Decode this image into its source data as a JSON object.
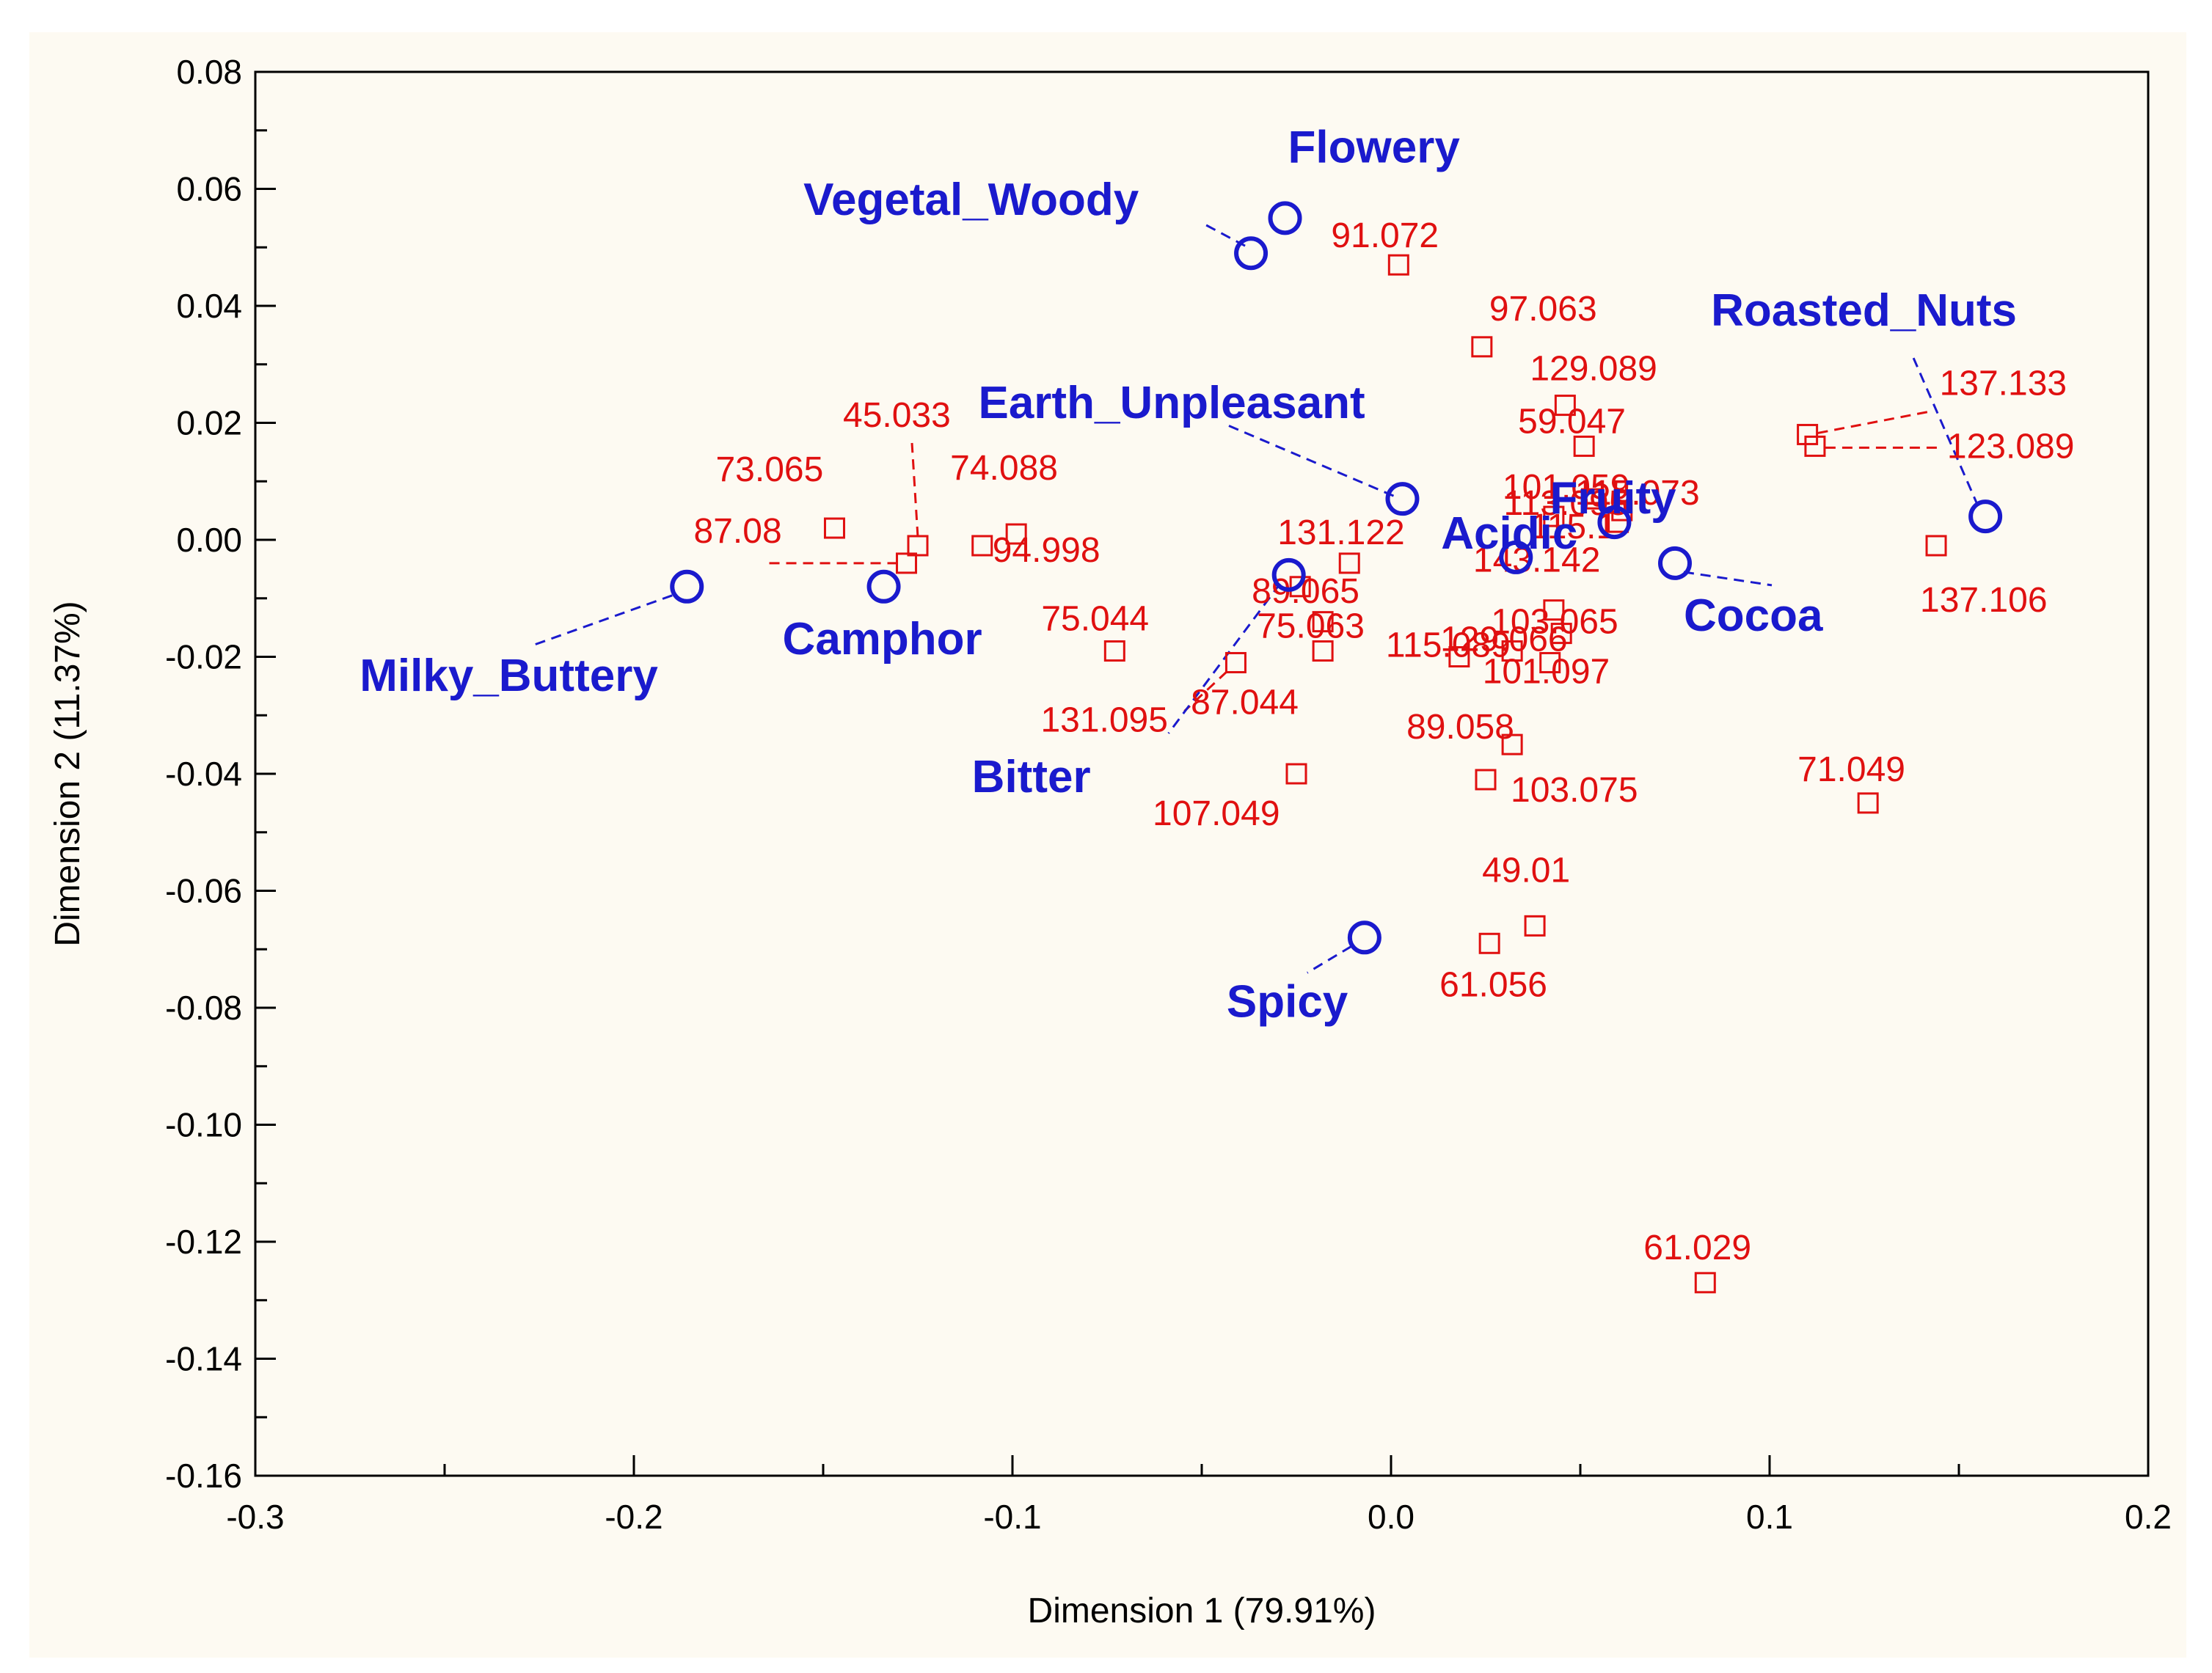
{
  "chart_data": {
    "type": "scatter",
    "xlabel": "Dimension 1 (79.91%)",
    "ylabel": "Dimension 2  (11.37%)",
    "xlim": [
      -0.3,
      0.2
    ],
    "ylim": [
      -0.16,
      0.08
    ],
    "xticks": [
      "-0.3",
      "-0.2",
      "-0.1",
      "0.0",
      "0.1",
      "0.2"
    ],
    "yticks": [
      "0.08",
      "0.06",
      "0.04",
      "0.02",
      "0.00",
      "-0.02",
      "-0.04",
      "-0.06",
      "-0.08",
      "-0.10",
      "-0.12",
      "-0.14",
      "-0.16"
    ],
    "grid": false,
    "colors": {
      "compounds": "#e01010",
      "attributes": "#1a1acd"
    },
    "series": [
      {
        "name": "",
        "marker": "square",
        "points": [
          {
            "label": "91.072",
            "x": 0.002,
            "y": 0.047
          },
          {
            "label": "97.063",
            "x": 0.024,
            "y": 0.033
          },
          {
            "label": "129.089",
            "x": 0.046,
            "y": 0.023
          },
          {
            "label": "59.047",
            "x": 0.051,
            "y": 0.016
          },
          {
            "label": "101.059",
            "x": 0.043,
            "y": 0.004
          },
          {
            "label": "113.095",
            "x": 0.053,
            "y": 0.007
          },
          {
            "label": "115.073",
            "x": 0.061,
            "y": 0.005
          },
          {
            "label": "115.1",
            "x": 0.06,
            "y": 0.003
          },
          {
            "label": "45.033",
            "x": -0.125,
            "y": -0.001
          },
          {
            "label": "73.065",
            "x": -0.147,
            "y": 0.002
          },
          {
            "label": "87.08",
            "x": -0.128,
            "y": -0.004
          },
          {
            "label": "74.088",
            "x": -0.099,
            "y": 0.001
          },
          {
            "label": "94.998",
            "x": -0.108,
            "y": -0.001
          },
          {
            "label": "131.122",
            "x": -0.011,
            "y": -0.004
          },
          {
            "label": "89.065",
            "x": -0.024,
            "y": -0.008
          },
          {
            "label": "75.044",
            "x": -0.073,
            "y": -0.019
          },
          {
            "label": "75.063",
            "x": -0.018,
            "y": -0.014
          },
          {
            "label": "131.095",
            "x": -0.041,
            "y": -0.021
          },
          {
            "label": "87.044",
            "x": -0.018,
            "y": -0.019
          },
          {
            "label": "143.142",
            "x": 0.043,
            "y": -0.012
          },
          {
            "label": "115.089",
            "x": 0.018,
            "y": -0.02
          },
          {
            "label": "129.066",
            "x": 0.032,
            "y": -0.019
          },
          {
            "label": "103.065",
            "x": 0.045,
            "y": -0.016
          },
          {
            "label": "101.097",
            "x": 0.042,
            "y": -0.021
          },
          {
            "label": "89.058",
            "x": 0.032,
            "y": -0.035
          },
          {
            "label": "103.075",
            "x": 0.025,
            "y": -0.041
          },
          {
            "label": "107.049",
            "x": -0.025,
            "y": -0.04
          },
          {
            "label": "71.049",
            "x": 0.126,
            "y": -0.045
          },
          {
            "label": "49.01",
            "x": 0.038,
            "y": -0.066
          },
          {
            "label": "61.056",
            "x": 0.026,
            "y": -0.069
          },
          {
            "label": "61.029",
            "x": 0.083,
            "y": -0.127
          },
          {
            "label": "137.133",
            "x": 0.11,
            "y": 0.018
          },
          {
            "label": "123.089",
            "x": 0.112,
            "y": 0.016
          },
          {
            "label": "137.106",
            "x": 0.144,
            "y": -0.001
          }
        ]
      },
      {
        "name": "",
        "marker": "circle",
        "points": [
          {
            "label": "Flowery",
            "x": -0.028,
            "y": 0.055
          },
          {
            "label": "Vegetal_Woody",
            "x": -0.037,
            "y": 0.049
          },
          {
            "label": "Earth_Unpleasant",
            "x": 0.003,
            "y": 0.007
          },
          {
            "label": "Fruity",
            "x": 0.059,
            "y": 0.003
          },
          {
            "label": "Acidic",
            "x": 0.033,
            "y": -0.003
          },
          {
            "label": "Cocoa",
            "x": 0.075,
            "y": -0.004
          },
          {
            "label": "Roasted_Nuts",
            "x": 0.157,
            "y": 0.004
          },
          {
            "label": "Camphor",
            "x": -0.134,
            "y": -0.008
          },
          {
            "label": "Milky_Buttery",
            "x": -0.186,
            "y": -0.008
          },
          {
            "label": "Bitter",
            "x": -0.027,
            "y": -0.006
          },
          {
            "label": "Spicy",
            "x": -0.007,
            "y": -0.068
          }
        ]
      }
    ]
  }
}
